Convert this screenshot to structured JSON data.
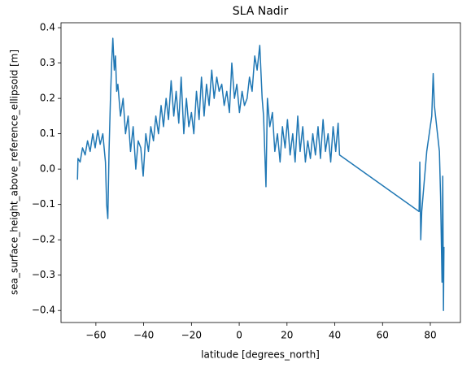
{
  "chart_data": {
    "type": "line",
    "title": "SLA Nadir",
    "x_label": "latitude [degrees_north]",
    "y_label": "sea_surface_height_above_reference_ellipsoid [m]",
    "color": "#1f77b4",
    "x": [
      -67.7,
      -67.5,
      -66.6,
      -65.6,
      -64.5,
      -63.5,
      -62.4,
      -61.3,
      -60.3,
      -59.2,
      -58.2,
      -57.1,
      -56.0,
      -55.5,
      -55.0,
      -54.5,
      -53.9,
      -53.4,
      -52.9,
      -52.3,
      -51.8,
      -51.3,
      -50.8,
      -49.7,
      -48.6,
      -47.6,
      -46.5,
      -45.5,
      -44.4,
      -43.3,
      -42.3,
      -41.2,
      -40.2,
      -39.1,
      -38.0,
      -37.0,
      -35.9,
      -34.9,
      -33.8,
      -32.7,
      -31.7,
      -30.6,
      -29.6,
      -28.5,
      -27.4,
      -26.4,
      -25.3,
      -24.3,
      -23.2,
      -22.1,
      -21.1,
      -20.0,
      -19.0,
      -17.9,
      -16.8,
      -15.8,
      -14.7,
      -13.7,
      -12.6,
      -11.5,
      -10.5,
      -9.4,
      -8.4,
      -7.3,
      -6.3,
      -5.2,
      -4.1,
      -3.1,
      -2.0,
      -1.0,
      0.1,
      1.2,
      2.2,
      3.3,
      4.3,
      5.4,
      6.5,
      7.5,
      8.6,
      9.6,
      10.2,
      10.7,
      11.2,
      11.8,
      12.8,
      13.9,
      14.9,
      16.0,
      17.1,
      18.1,
      19.2,
      20.2,
      21.3,
      22.4,
      23.4,
      24.5,
      25.5,
      26.6,
      27.7,
      28.7,
      29.8,
      30.8,
      31.9,
      33.0,
      34.0,
      35.1,
      36.1,
      37.2,
      38.3,
      39.3,
      40.4,
      41.4,
      42.0,
      75.3,
      75.6,
      76.0,
      76.4,
      78.5,
      80.6,
      81.2,
      81.7,
      83.8,
      84.3,
      84.9,
      85.2,
      85.5,
      85.7
    ],
    "values": [
      -0.03,
      0.03,
      0.02,
      0.06,
      0.04,
      0.08,
      0.05,
      0.1,
      0.06,
      0.11,
      0.07,
      0.1,
      0.02,
      -0.1,
      -0.14,
      0.05,
      0.2,
      0.3,
      0.37,
      0.28,
      0.32,
      0.22,
      0.24,
      0.15,
      0.2,
      0.1,
      0.15,
      0.05,
      0.12,
      0.0,
      0.08,
      0.06,
      -0.02,
      0.1,
      0.05,
      0.12,
      0.08,
      0.15,
      0.1,
      0.18,
      0.12,
      0.2,
      0.14,
      0.25,
      0.15,
      0.22,
      0.13,
      0.26,
      0.1,
      0.2,
      0.12,
      0.16,
      0.1,
      0.22,
      0.14,
      0.26,
      0.15,
      0.24,
      0.18,
      0.28,
      0.2,
      0.26,
      0.22,
      0.24,
      0.18,
      0.22,
      0.16,
      0.3,
      0.2,
      0.24,
      0.16,
      0.22,
      0.18,
      0.2,
      0.26,
      0.22,
      0.32,
      0.28,
      0.35,
      0.2,
      0.15,
      0.05,
      -0.05,
      0.2,
      0.12,
      0.16,
      0.05,
      0.1,
      0.02,
      0.12,
      0.06,
      0.14,
      0.04,
      0.1,
      0.02,
      0.15,
      0.05,
      0.12,
      0.02,
      0.08,
      0.03,
      0.1,
      0.04,
      0.12,
      0.03,
      0.14,
      0.05,
      0.1,
      0.02,
      0.12,
      0.05,
      0.13,
      0.04,
      -0.12,
      0.02,
      -0.2,
      -0.12,
      0.05,
      0.15,
      0.27,
      0.18,
      0.05,
      -0.08,
      -0.32,
      -0.02,
      -0.4,
      -0.22
    ],
    "xlim": [
      -74.6,
      92.6
    ],
    "ylim": [
      -0.434,
      0.414
    ],
    "xticks": [
      {
        "value": -60,
        "label": "−60"
      },
      {
        "value": -40,
        "label": "−40"
      },
      {
        "value": -20,
        "label": "−20"
      },
      0,
      20,
      40,
      60,
      80
    ],
    "yticks": [
      {
        "value": -0.4,
        "label": "−0.4"
      },
      {
        "value": -0.3,
        "label": "−0.3"
      },
      {
        "value": -0.2,
        "label": "−0.2"
      },
      {
        "value": -0.1,
        "label": "−0.1"
      },
      {
        "value": 0,
        "label": "0.0"
      },
      0.1,
      0.2,
      0.3,
      0.4
    ]
  }
}
